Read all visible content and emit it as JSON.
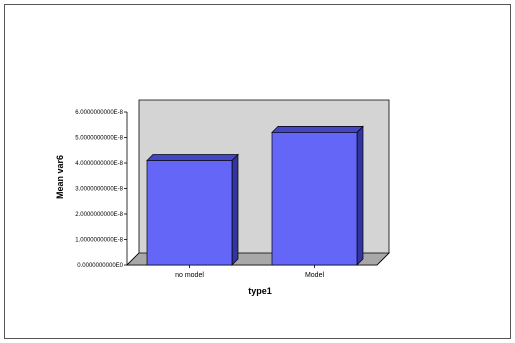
{
  "colors": {
    "bar_front": "#6466f8",
    "bar_top": "#4546c4",
    "bar_side": "#3234a0",
    "bar_edge": "#000000",
    "wall": "#d4d4d4",
    "floor": "#a8a8a8"
  },
  "chart_data": {
    "type": "bar",
    "categories": [
      "no model",
      "Model"
    ],
    "values": [
      4.1e-08,
      5.2e-08
    ],
    "xlabel": "type1",
    "ylabel": "Mean var6",
    "ylim": [
      0,
      6e-08
    ],
    "yticks": [
      {
        "value": 0,
        "label": "0.0000000000E0"
      },
      {
        "value": 1e-08,
        "label": "1.0000000000E-8"
      },
      {
        "value": 2e-08,
        "label": "2.0000000000E-8"
      },
      {
        "value": 3e-08,
        "label": "3.0000000000E-8"
      },
      {
        "value": 4e-08,
        "label": "4.0000000000E-8"
      },
      {
        "value": 5e-08,
        "label": "5.0000000000E-8"
      },
      {
        "value": 6e-08,
        "label": "6.0000000000E-8"
      }
    ],
    "grid": false,
    "style": "3d"
  }
}
